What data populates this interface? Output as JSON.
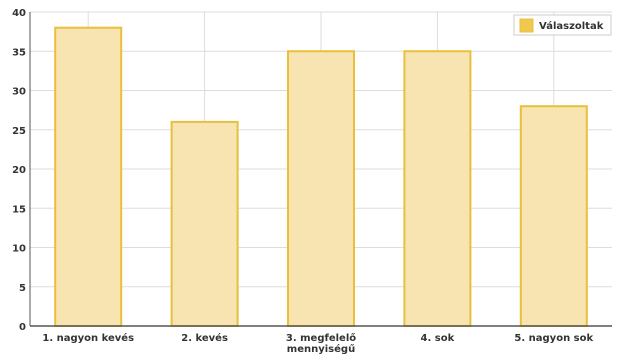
{
  "chart_data": {
    "type": "bar",
    "categories": [
      "1. nagyon kevés",
      "2. kevés",
      "3. megfelelő mennyiségű",
      "4. sok",
      "5. nagyon sok"
    ],
    "category_lines": [
      [
        "1. nagyon kevés"
      ],
      [
        "2. kevés"
      ],
      [
        "3. megfelelő",
        "mennyiségű"
      ],
      [
        "4. sok"
      ],
      [
        "5. nagyon sok"
      ]
    ],
    "series": [
      {
        "name": "Válaszoltak",
        "values": [
          38,
          26,
          35,
          35,
          28
        ]
      }
    ],
    "ylim": [
      0,
      40
    ],
    "yticks": [
      "0",
      "5",
      "10",
      "15",
      "20",
      "25",
      "30",
      "35",
      "40"
    ],
    "grid": true,
    "legend": "top-right",
    "colors": {
      "bar_fill": "#f8e4b0",
      "bar_stroke": "#e9bf3c",
      "legend_swatch": "#f0c850",
      "grid": "#dddddd",
      "axis": "#555555"
    }
  }
}
